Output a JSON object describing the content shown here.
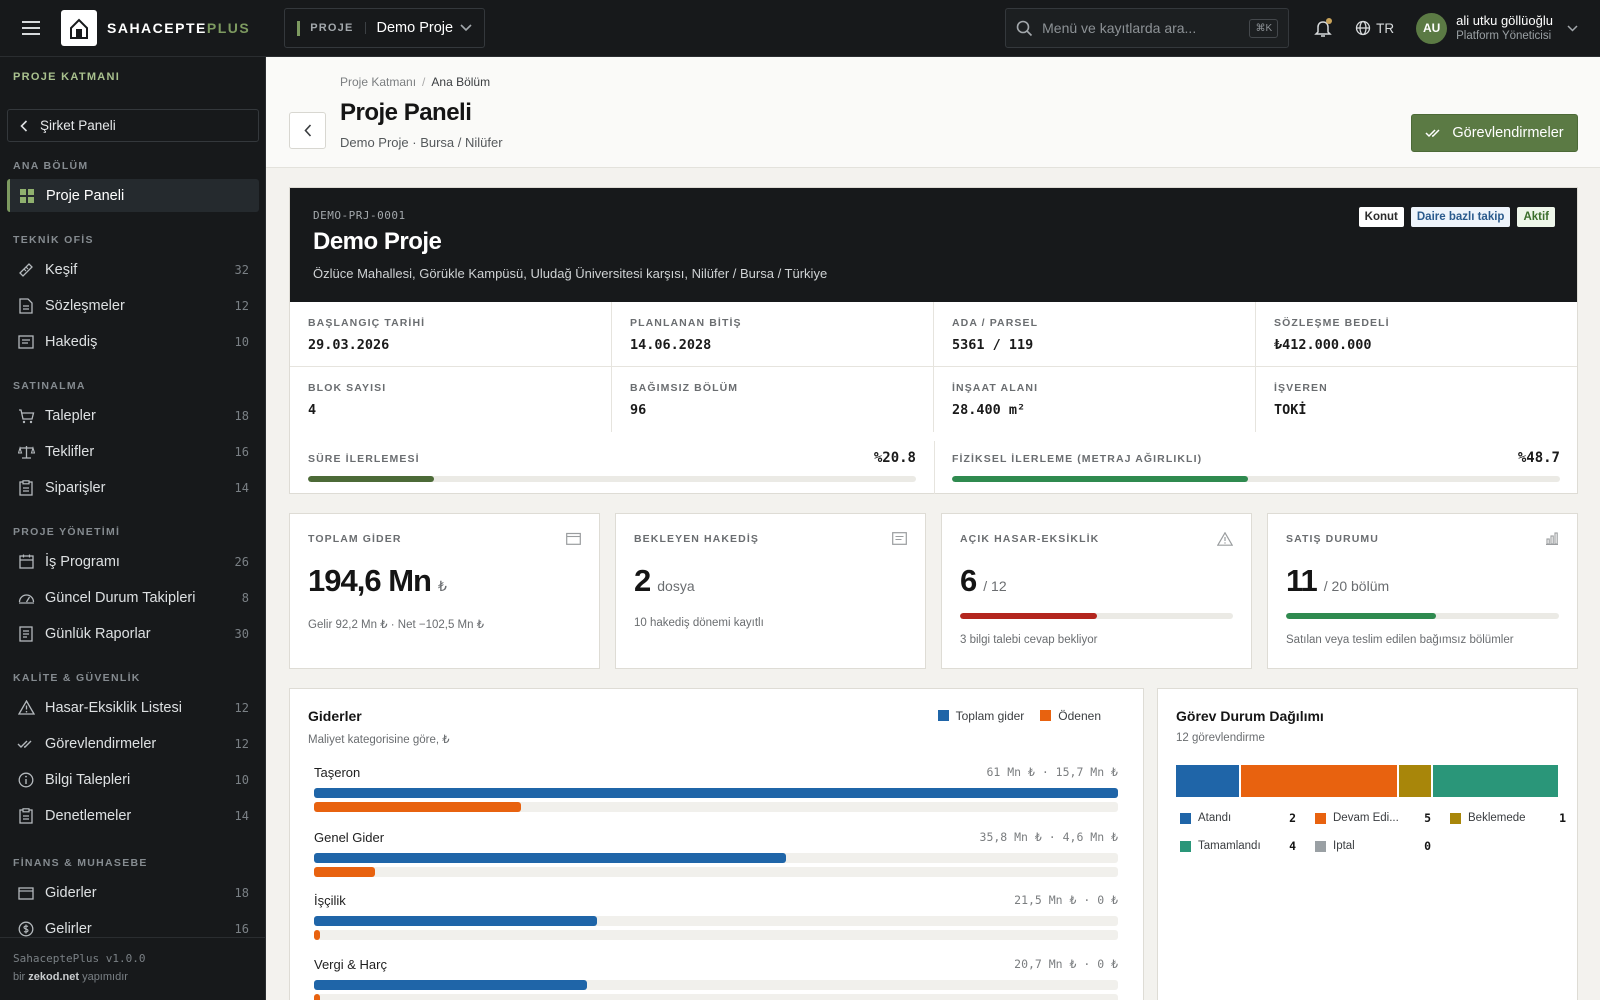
{
  "topbar": {
    "brand_main": "SAHACEPTE",
    "brand_plus": "PLUS",
    "project_label": "PROJE",
    "project_name": "Demo Proje",
    "search_placeholder": "Menü ve kayıtlarda ara...",
    "search_shortcut": "⌘K",
    "language": "TR",
    "user_initials": "AU",
    "user_name": "ali utku göllüoğlu",
    "user_role": "Platform Yöneticisi"
  },
  "sidebar": {
    "title": "PROJE KATMANI",
    "back_label": "Şirket Paneli",
    "sections": {
      "main": "ANA BÖLÜM",
      "tech": "TEKNİK OFİS",
      "purchase": "SATINALMA",
      "pm": "PROJE YÖNETİMİ",
      "quality": "KALİTE & GÜVENLİK",
      "finance": "FİNANS & MUHASEBE"
    },
    "items": [
      {
        "label": "Proje Paneli",
        "count": "",
        "icon": "dashboard-grid-icon"
      },
      {
        "label": "Keşif",
        "count": "32",
        "icon": "ruler-icon"
      },
      {
        "label": "Sözleşmeler",
        "count": "12",
        "icon": "document-icon"
      },
      {
        "label": "Hakediş",
        "count": "10",
        "icon": "receipt-icon"
      },
      {
        "label": "Talepler",
        "count": "18",
        "icon": "cart-icon"
      },
      {
        "label": "Teklifler",
        "count": "16",
        "icon": "scale-icon"
      },
      {
        "label": "Siparişler",
        "count": "14",
        "icon": "clipboard-icon"
      },
      {
        "label": "İş Programı",
        "count": "26",
        "icon": "calendar-icon"
      },
      {
        "label": "Güncel Durum Takipleri",
        "count": "8",
        "icon": "gauge-icon"
      },
      {
        "label": "Günlük Raporlar",
        "count": "30",
        "icon": "report-icon"
      },
      {
        "label": "Hasar-Eksiklik Listesi",
        "count": "12",
        "icon": "warning-icon"
      },
      {
        "label": "Görevlendirmeler",
        "count": "12",
        "icon": "double-check-icon"
      },
      {
        "label": "Bilgi Talepleri",
        "count": "10",
        "icon": "info-icon"
      },
      {
        "label": "Denetlemeler",
        "count": "14",
        "icon": "clipboard-check-icon"
      },
      {
        "label": "Giderler",
        "count": "18",
        "icon": "wallet-icon"
      },
      {
        "label": "Gelirler",
        "count": "16",
        "icon": "coin-icon"
      }
    ],
    "footer_version": "SahaceptePlus v1.0.0",
    "footer_by_prefix": "bir ",
    "footer_by_brand": "zekod.net",
    "footer_by_suffix": " yapımıdır"
  },
  "header": {
    "breadcrumb_root": "Proje Katmanı",
    "breadcrumb_current": "Ana Bölüm",
    "title": "Proje Paneli",
    "subtitle": "Demo Proje · Bursa / Nilüfer",
    "action_label": "Görevlendirmeler"
  },
  "project": {
    "code": "DEMO-PRJ-0001",
    "name": "Demo Proje",
    "address": "Özlüce Mahallesi, Görükle Kampüsü, Uludağ Üniversitesi karşısı, Nilüfer / Bursa / Türkiye",
    "tags": [
      "Konut",
      "Daire bazlı takip",
      "Aktif"
    ],
    "meta": [
      {
        "label": "BAŞLANGIÇ TARİHİ",
        "value": "29.03.2026"
      },
      {
        "label": "PLANLANAN BİTİŞ",
        "value": "14.06.2028"
      },
      {
        "label": "ADA / PARSEL",
        "value": "5361 / 119"
      },
      {
        "label": "SÖZLEŞME BEDELİ",
        "value": "₺412.000.000"
      },
      {
        "label": "BLOK SAYISI",
        "value": "4"
      },
      {
        "label": "BAĞIMSIZ BÖLÜM",
        "value": "96"
      },
      {
        "label": "İNŞAAT ALANI",
        "value": "28.400 m²"
      },
      {
        "label": "İŞVEREN",
        "value": "TOKİ"
      }
    ],
    "time_progress": {
      "label": "SÜRE İLERLEMESİ",
      "display": "%20.8",
      "value": 20.8,
      "color": "#4c6a37"
    },
    "physical_progress": {
      "label": "FİZİKSEL İLERLEME (METRAJ AĞIRLIKLI)",
      "display": "%48.7",
      "value": 48.7,
      "color": "#2f8a4f"
    }
  },
  "kpis": {
    "expense": {
      "label": "TOPLAM GİDER",
      "value": "194,6 Mn",
      "unit": "₺",
      "sub": "Gelir 92,2 Mn ₺ · Net −102,5 Mn ₺",
      "icon": "wallet-icon"
    },
    "payment": {
      "label": "BEKLEYEN HAKEDİŞ",
      "value": "2",
      "unit": "dosya",
      "sub": "10 hakediş dönemi kayıtlı",
      "icon": "receipt-icon"
    },
    "defects": {
      "label": "AÇIK HASAR-EKSİKLİK",
      "value": "6",
      "unit": "/ 12",
      "sub": "3 bilgi talebi cevap bekliyor",
      "icon": "warning-icon",
      "progress": 0.5,
      "color": "#b3261e"
    },
    "sales": {
      "label": "SATIŞ DURUMU",
      "value": "11",
      "unit": "/ 20 bölüm",
      "sub": "Satılan veya teslim edilen bağımsız bölümler",
      "icon": "bar-chart-icon",
      "progress": 0.55,
      "color": "#2f8a4f"
    }
  },
  "expenses_card": {
    "title": "Giderler",
    "subtitle": "Maliyet kategorisine göre, ₺",
    "legend_total": "Toplam gider",
    "legend_paid": "Ödenen",
    "color_total": "#1f65a8",
    "color_paid": "#e8620f"
  },
  "tasks_card": {
    "title": "Görev Durum Dağılımı",
    "subtitle": "12 görevlendirme"
  },
  "chart_data": [
    {
      "type": "bar",
      "title": "Giderler",
      "subtitle": "Maliyet kategorisine göre, ₺",
      "orientation": "horizontal",
      "categories": [
        "Taşeron",
        "Genel Gider",
        "İşçilik",
        "Vergi & Harç"
      ],
      "amount_labels": [
        "61 Mn ₺ · 15,7 Mn ₺",
        "35,8 Mn ₺ · 4,6 Mn ₺",
        "21,5 Mn ₺ · 0 ₺",
        "20,7 Mn ₺ · 0 ₺"
      ],
      "series": [
        {
          "name": "Toplam gider",
          "values": [
            61,
            35.8,
            21.5,
            20.7
          ],
          "color": "#1f65a8"
        },
        {
          "name": "Ödenen",
          "values": [
            15.7,
            4.6,
            0,
            0
          ],
          "color": "#e8620f"
        }
      ],
      "xlim": [
        0,
        61
      ],
      "unit": "Mn ₺",
      "legend": "top-right"
    },
    {
      "type": "bar",
      "title": "Görev Durum Dağılımı",
      "subtitle": "12 görevlendirme",
      "orientation": "stacked-horizontal",
      "categories": [
        "Atandı",
        "Devam Edi...",
        "Beklemede",
        "Tamamlandı",
        "İptal"
      ],
      "values": [
        2,
        5,
        1,
        4,
        0
      ],
      "colors": [
        "#1f65a8",
        "#e8620f",
        "#a8860a",
        "#2a9679",
        "#9aa0a4"
      ],
      "legend": "bottom"
    }
  ]
}
